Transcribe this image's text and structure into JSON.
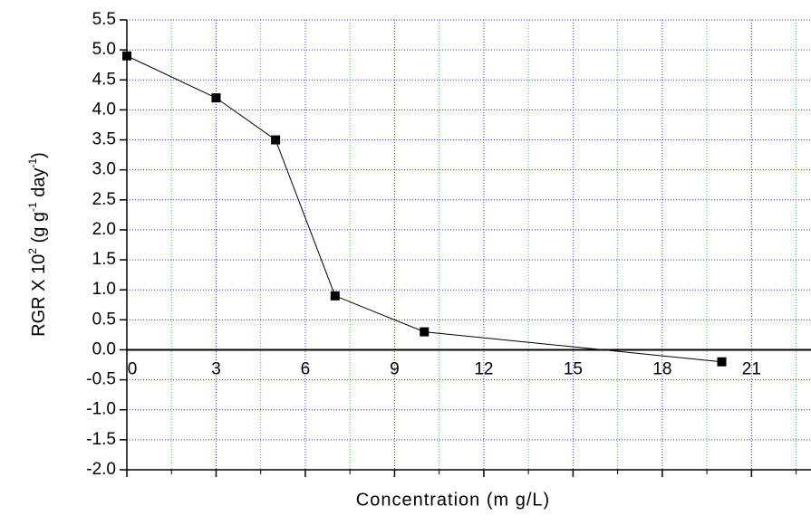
{
  "chart_data": {
    "type": "line",
    "x_label": "Concentration (m g/L)",
    "y_label_parts": [
      "RGR X 10",
      "2",
      " (g g",
      "-1",
      " day",
      "-1",
      ")"
    ],
    "x": [
      0,
      3,
      5,
      7,
      10,
      20
    ],
    "series": [
      {
        "name": "RGR",
        "color": "#000000",
        "values": [
          4.9,
          4.2,
          3.5,
          0.9,
          0.3,
          -0.2
        ]
      }
    ],
    "xlim": [
      0,
      23
    ],
    "xticks": [
      0,
      3,
      6,
      9,
      12,
      15,
      18,
      21
    ],
    "x_minor_grid": [
      1.5,
      4.5,
      7.5,
      10.5,
      13.5,
      16.5,
      19.5,
      22.5
    ],
    "ylim": [
      -2.0,
      5.5
    ],
    "yticks": [
      {
        "value": -2,
        "label": "-2.0"
      },
      {
        "value": -1.5,
        "label": "-1.5"
      },
      {
        "value": -1,
        "label": "-1.0"
      },
      {
        "value": -0.5,
        "label": "-0.5"
      },
      {
        "value": 0,
        "label": "0.0"
      },
      {
        "value": 0.5,
        "label": "0.5"
      },
      {
        "value": 1,
        "label": "1.0"
      },
      {
        "value": 1.5,
        "label": "1.5"
      },
      {
        "value": 2,
        "label": "2.0"
      },
      {
        "value": 2.5,
        "label": "2.5"
      },
      {
        "value": 3,
        "label": "3.0"
      },
      {
        "value": 3.5,
        "label": "3.5"
      },
      {
        "value": 4,
        "label": "4.0"
      },
      {
        "value": 4.5,
        "label": "4.5"
      },
      {
        "value": 5,
        "label": "5.0"
      },
      {
        "value": 5.5,
        "label": "5.5"
      }
    ],
    "grid": true
  }
}
